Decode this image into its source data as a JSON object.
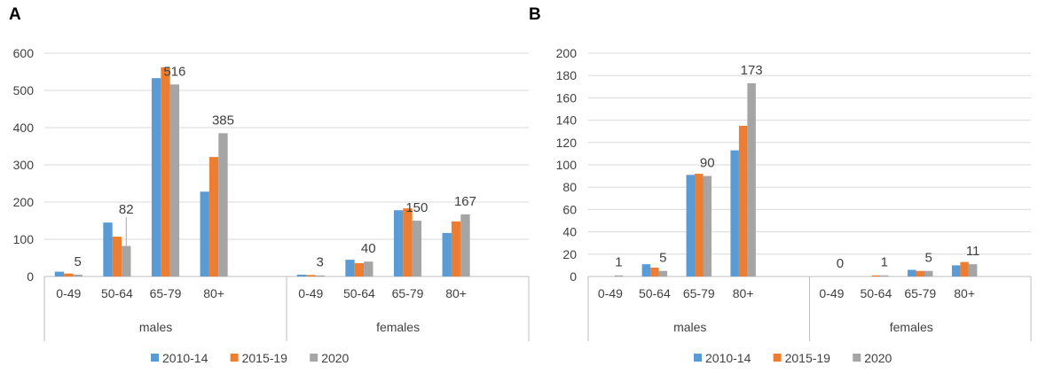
{
  "chart_data": [
    {
      "type": "bar",
      "panel": "A",
      "groups": [
        "males",
        "females"
      ],
      "categories": [
        "0-49",
        "50-64",
        "65-79",
        "80+"
      ],
      "series": [
        {
          "name": "2010-14",
          "color": "#5b9bd5",
          "values": [
            [
              13,
              145,
              533,
              228
            ],
            [
              5,
              45,
              178,
              117
            ]
          ]
        },
        {
          "name": "2015-19",
          "color": "#ed7d31",
          "values": [
            [
              8,
              107,
              562,
              321
            ],
            [
              4,
              36,
              183,
              148
            ]
          ]
        },
        {
          "name": "2020",
          "color": "#a5a5a5",
          "values": [
            [
              5,
              82,
              516,
              385
            ],
            [
              3,
              40,
              150,
              167
            ]
          ]
        }
      ],
      "data_labels": [
        [
          "5",
          "82",
          "516",
          "385"
        ],
        [
          "3",
          "40",
          "150",
          "167"
        ]
      ],
      "yticks": [
        "0",
        "100",
        "200",
        "300",
        "400",
        "500",
        "600"
      ],
      "ylim": [
        0,
        600
      ],
      "grid": true,
      "legend": "bottom"
    },
    {
      "type": "bar",
      "panel": "B",
      "groups": [
        "males",
        "females"
      ],
      "categories": [
        "0-49",
        "50-64",
        "65-79",
        "80+"
      ],
      "series": [
        {
          "name": "2010-14",
          "color": "#5b9bd5",
          "values": [
            [
              0,
              11,
              91,
              113
            ],
            [
              0,
              0,
              6,
              10
            ]
          ]
        },
        {
          "name": "2015-19",
          "color": "#ed7d31",
          "values": [
            [
              0,
              8,
              92,
              135
            ],
            [
              0,
              1,
              5,
              13
            ]
          ]
        },
        {
          "name": "2020",
          "color": "#a5a5a5",
          "values": [
            [
              1,
              5,
              90,
              173
            ],
            [
              0,
              1,
              5,
              11
            ]
          ]
        }
      ],
      "data_labels": [
        [
          "1",
          "5",
          "90",
          "173"
        ],
        [
          "0",
          "1",
          "5",
          "11"
        ]
      ],
      "yticks": [
        "0",
        "20",
        "40",
        "60",
        "80",
        "100",
        "120",
        "140",
        "160",
        "180",
        "200"
      ],
      "ylim": [
        0,
        200
      ],
      "grid": true,
      "legend": "bottom"
    }
  ]
}
